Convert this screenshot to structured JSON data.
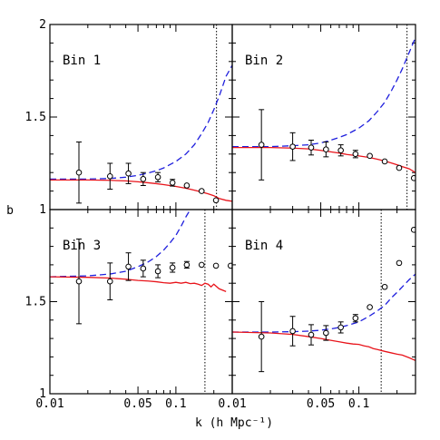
{
  "chart_data": {
    "type": "scatter",
    "xlabel": "k (h Mpc⁻¹)",
    "ylabel": "b",
    "x_scale": "log",
    "xlim": [
      0.01,
      0.28
    ],
    "x_ticks": [
      {
        "value": 0.01,
        "label": "0.01"
      },
      {
        "value": 0.05,
        "label": "0.05"
      },
      {
        "value": 0.1,
        "label": "0.1"
      }
    ],
    "x_ticks_right_panel": [
      {
        "value": 0.01,
        "label": "0.01"
      },
      {
        "value": 0.05,
        "label": "0.05"
      },
      {
        "value": 0.1,
        "label": "0.1"
      }
    ],
    "colors": {
      "dashed": "#1f1fdd",
      "solid": "#e8141b",
      "points": "#000000",
      "kmax_line": "#000000"
    },
    "panels": [
      {
        "label": "Bin 1",
        "ylim": [
          1.0,
          2.0
        ],
        "y_ticks": [
          {
            "value": 2,
            "label": "2"
          },
          {
            "value": 1.5,
            "label": "1.5"
          },
          {
            "value": 1,
            "label": "1"
          }
        ],
        "kmax": 0.21,
        "points": {
          "x": [
            0.017,
            0.03,
            0.042,
            0.055,
            0.072,
            0.094,
            0.122,
            0.16,
            0.208
          ],
          "y": [
            1.2,
            1.18,
            1.195,
            1.165,
            1.175,
            1.145,
            1.13,
            1.1,
            1.05
          ],
          "err": [
            0.165,
            0.07,
            0.055,
            0.035,
            0.025,
            0.018,
            0.012,
            0.01,
            0.008
          ]
        },
        "dashed": {
          "x": [
            0.01,
            0.02,
            0.03,
            0.04,
            0.05,
            0.06,
            0.07,
            0.08,
            0.1,
            0.12,
            0.14,
            0.16,
            0.18,
            0.2,
            0.22,
            0.25,
            0.28
          ],
          "y": [
            1.165,
            1.165,
            1.168,
            1.175,
            1.185,
            1.197,
            1.21,
            1.225,
            1.26,
            1.3,
            1.35,
            1.41,
            1.47,
            1.54,
            1.61,
            1.72,
            1.78
          ]
        },
        "solid": {
          "x": [
            0.01,
            0.02,
            0.03,
            0.04,
            0.05,
            0.06,
            0.07,
            0.08,
            0.1,
            0.12,
            0.14,
            0.16,
            0.18,
            0.2,
            0.22,
            0.25,
            0.28
          ],
          "y": [
            1.16,
            1.16,
            1.158,
            1.155,
            1.15,
            1.145,
            1.14,
            1.135,
            1.125,
            1.115,
            1.105,
            1.095,
            1.085,
            1.075,
            1.06,
            1.05,
            1.045
          ]
        }
      },
      {
        "label": "Bin 2",
        "ylim": [
          1.0,
          2.0
        ],
        "y_ticks": [],
        "kmax": 0.24,
        "points": {
          "x": [
            0.017,
            0.03,
            0.042,
            0.055,
            0.072,
            0.094,
            0.122,
            0.16,
            0.208,
            0.272
          ],
          "y": [
            1.35,
            1.34,
            1.335,
            1.325,
            1.32,
            1.3,
            1.29,
            1.26,
            1.225,
            1.17
          ],
          "err": [
            0.19,
            0.075,
            0.04,
            0.04,
            0.03,
            0.02,
            0.015,
            0.012,
            0.01,
            0.01
          ]
        },
        "dashed": {
          "x": [
            0.01,
            0.02,
            0.03,
            0.04,
            0.05,
            0.06,
            0.07,
            0.08,
            0.1,
            0.12,
            0.14,
            0.16,
            0.18,
            0.2,
            0.22,
            0.25,
            0.28
          ],
          "y": [
            1.34,
            1.34,
            1.345,
            1.35,
            1.36,
            1.375,
            1.39,
            1.405,
            1.44,
            1.48,
            1.53,
            1.58,
            1.64,
            1.7,
            1.76,
            1.85,
            1.93
          ]
        },
        "solid": {
          "x": [
            0.01,
            0.02,
            0.03,
            0.04,
            0.05,
            0.06,
            0.07,
            0.08,
            0.1,
            0.12,
            0.14,
            0.16,
            0.18,
            0.2,
            0.22,
            0.25,
            0.28
          ],
          "y": [
            1.335,
            1.335,
            1.332,
            1.328,
            1.32,
            1.312,
            1.305,
            1.298,
            1.29,
            1.282,
            1.272,
            1.262,
            1.252,
            1.242,
            1.232,
            1.22,
            1.2
          ]
        }
      },
      {
        "label": "Bin 3",
        "ylim": [
          1.0,
          2.0
        ],
        "y_ticks": [
          {
            "value": 1.5,
            "label": "1.5"
          },
          {
            "value": 1,
            "label": "1"
          }
        ],
        "kmax": 0.17,
        "points": {
          "x": [
            0.017,
            0.03,
            0.042,
            0.055,
            0.072,
            0.094,
            0.122,
            0.16,
            0.208,
            0.272
          ],
          "y": [
            1.61,
            1.61,
            1.69,
            1.68,
            1.665,
            1.685,
            1.7,
            1.7,
            1.695,
            1.695
          ],
          "err": [
            0.23,
            0.1,
            0.075,
            0.045,
            0.035,
            0.025,
            0.018,
            0.012,
            0.01,
            0.01
          ]
        },
        "dashed": {
          "x": [
            0.01,
            0.02,
            0.03,
            0.04,
            0.05,
            0.06,
            0.07,
            0.08,
            0.09,
            0.1,
            0.11,
            0.12,
            0.13
          ],
          "y": [
            1.635,
            1.64,
            1.65,
            1.665,
            1.69,
            1.715,
            1.745,
            1.78,
            1.82,
            1.86,
            1.91,
            1.96,
            2.0
          ]
        },
        "solid": {
          "x": [
            0.01,
            0.02,
            0.03,
            0.04,
            0.05,
            0.06,
            0.07,
            0.08,
            0.09,
            0.1,
            0.11,
            0.12,
            0.13,
            0.14,
            0.15,
            0.16,
            0.17,
            0.18,
            0.19,
            0.2,
            0.22,
            0.25
          ],
          "y": [
            1.635,
            1.632,
            1.628,
            1.622,
            1.615,
            1.612,
            1.608,
            1.603,
            1.6,
            1.605,
            1.6,
            1.605,
            1.598,
            1.6,
            1.595,
            1.588,
            1.6,
            1.595,
            1.58,
            1.595,
            1.57,
            1.555
          ]
        }
      },
      {
        "label": "Bin 4",
        "ylim": [
          1.0,
          2.0
        ],
        "y_ticks": [],
        "kmax": 0.15,
        "points": {
          "x": [
            0.017,
            0.03,
            0.042,
            0.055,
            0.072,
            0.094,
            0.122,
            0.16,
            0.208,
            0.272
          ],
          "y": [
            1.31,
            1.34,
            1.32,
            1.33,
            1.36,
            1.41,
            1.47,
            1.58,
            1.71,
            1.89
          ],
          "err": [
            0.19,
            0.08,
            0.055,
            0.04,
            0.03,
            0.02,
            0.015,
            0.012,
            0.01,
            0.01
          ]
        },
        "dashed": {
          "x": [
            0.01,
            0.02,
            0.03,
            0.04,
            0.05,
            0.06,
            0.07,
            0.08,
            0.1,
            0.12,
            0.14,
            0.16,
            0.18,
            0.2,
            0.22,
            0.25,
            0.28
          ],
          "y": [
            1.335,
            1.335,
            1.337,
            1.34,
            1.345,
            1.352,
            1.36,
            1.37,
            1.39,
            1.42,
            1.45,
            1.48,
            1.52,
            1.55,
            1.58,
            1.62,
            1.65
          ]
        },
        "solid": {
          "x": [
            0.01,
            0.02,
            0.03,
            0.04,
            0.05,
            0.06,
            0.07,
            0.08,
            0.09,
            0.1,
            0.11,
            0.12,
            0.13,
            0.14,
            0.16,
            0.18,
            0.2,
            0.22,
            0.25,
            0.28
          ],
          "y": [
            1.335,
            1.33,
            1.322,
            1.31,
            1.3,
            1.29,
            1.282,
            1.275,
            1.27,
            1.268,
            1.26,
            1.255,
            1.245,
            1.24,
            1.23,
            1.222,
            1.215,
            1.21,
            1.195,
            1.18
          ]
        }
      }
    ]
  }
}
